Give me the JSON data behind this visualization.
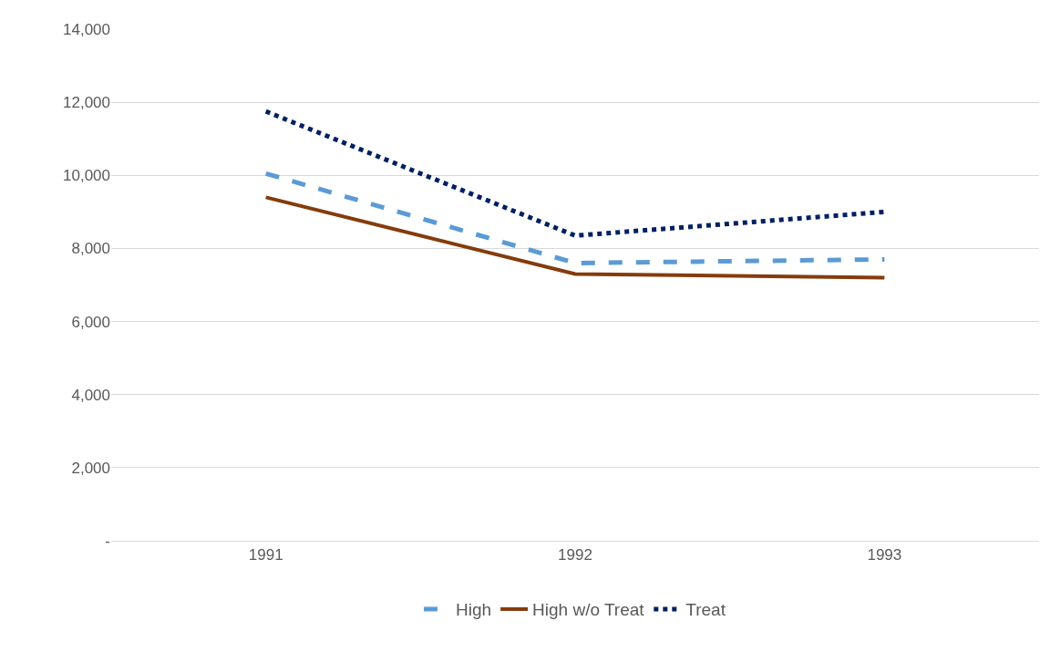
{
  "chart_data": {
    "type": "line",
    "categories": [
      "1991",
      "1992",
      "1993"
    ],
    "series": [
      {
        "name": "High",
        "color": "#5b9bd5",
        "line_style": "dashed",
        "values": [
          10050,
          7600,
          7700
        ]
      },
      {
        "name": "High w/o Treat",
        "color": "#843c0c",
        "line_style": "solid",
        "values": [
          9400,
          7300,
          7200
        ]
      },
      {
        "name": "Treat",
        "color": "#002060",
        "line_style": "dotted",
        "values": [
          11750,
          8350,
          9000
        ]
      }
    ],
    "ylim": [
      0,
      14000
    ],
    "yticks": [
      {
        "value": 0,
        "label": "-"
      },
      {
        "value": 2000,
        "label": "2,000"
      },
      {
        "value": 4000,
        "label": "4,000"
      },
      {
        "value": 6000,
        "label": "6,000"
      },
      {
        "value": 8000,
        "label": "8,000"
      },
      {
        "value": 10000,
        "label": "10,000"
      },
      {
        "value": 12000,
        "label": "12,000"
      },
      {
        "value": 14000,
        "label": "14,000"
      }
    ],
    "grid": "y",
    "legend": "bottom",
    "marker": "none"
  }
}
